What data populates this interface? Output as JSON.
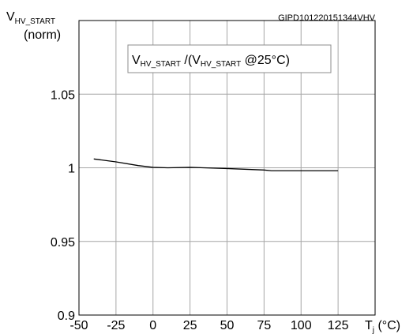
{
  "figure_id": "GIPD101220151344VHV",
  "chart_data": {
    "type": "line",
    "y_label_main": "V",
    "y_label_sub": "HV_START",
    "y_label_norm": "(norm)",
    "x_label_main": "T",
    "x_label_sub": "j",
    "x_label_unit": " (°C)",
    "annotation": {
      "a": "V",
      "a_sub": "HV_START",
      "b": " /(V",
      "b_sub": "HV_START",
      "c": " @25°C)"
    },
    "xlim": [
      -50,
      150
    ],
    "ylim": [
      0.9,
      1.1
    ],
    "x_ticks": [
      "-50",
      "-25",
      "0",
      "25",
      "50",
      "75",
      "100",
      "125"
    ],
    "x_tick_values": [
      -50,
      -25,
      0,
      25,
      50,
      75,
      100,
      125
    ],
    "y_ticks": [
      "0.9",
      "0.95",
      "1",
      "1.05"
    ],
    "y_tick_values": [
      0.9,
      0.95,
      1.0,
      1.05
    ],
    "grid": true,
    "series": [
      {
        "x": [
          -40,
          -25,
          -10,
          0,
          10,
          25,
          50,
          75,
          80,
          100,
          125
        ],
        "y": [
          1.006,
          1.004,
          1.0015,
          1.0003,
          1.0,
          1.0003,
          0.9995,
          0.9985,
          0.998,
          0.998,
          0.998
        ]
      }
    ],
    "line_color": "#000000",
    "grid_color": "#a6a6a6"
  }
}
